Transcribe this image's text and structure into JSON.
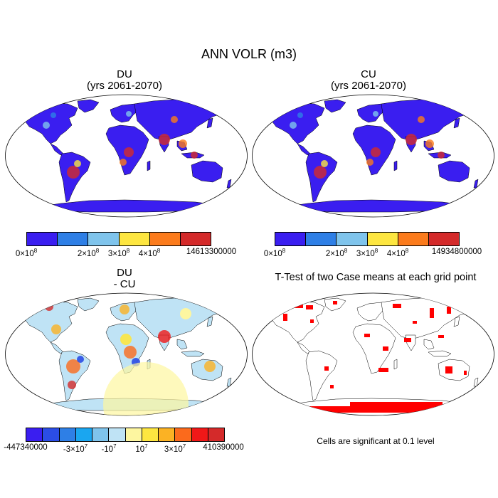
{
  "main_title": "ANN VOLR (m3)",
  "panels": {
    "du": {
      "title_line1": "DU",
      "title_line2": "(yrs 2061-2070)"
    },
    "cu": {
      "title_line1": "CU",
      "title_line2": "(yrs 2061-2070)"
    },
    "diff": {
      "title_line1": "DU",
      "title_line2": "- CU"
    },
    "ttest": {
      "title_line1": "T-Test of two Case means at each grid point",
      "note": "Cells are significant at 0.1 level",
      "significant_color": "#ff0000"
    }
  },
  "colorbars": {
    "du": {
      "colors": [
        "#3a1ef0",
        "#2e7fe6",
        "#7fc4ec",
        "#fde640",
        "#fb7b1c",
        "#d42a2a"
      ],
      "labels": {
        "min": "0×10",
        "min_exp": "8",
        "t2": "2×10",
        "t2_exp": "8",
        "t3": "3×10",
        "t3_exp": "8",
        "t4": "4×10",
        "t4_exp": "8",
        "max": "14613300000"
      }
    },
    "cu": {
      "colors": [
        "#3a1ef0",
        "#2e7fe6",
        "#7fc4ec",
        "#fde640",
        "#fb7b1c",
        "#d42a2a"
      ],
      "labels": {
        "min": "0×10",
        "min_exp": "8",
        "t2": "2×10",
        "t2_exp": "8",
        "t3": "3×10",
        "t3_exp": "8",
        "t4": "4×10",
        "t4_exp": "8",
        "max": "14934800000"
      }
    },
    "diff": {
      "colors": [
        "#3a1ef0",
        "#2b4de6",
        "#2e7fe6",
        "#1aa6f0",
        "#7fc4ec",
        "#bfe3f5",
        "#fdf6a0",
        "#fde640",
        "#fbb224",
        "#fb6a1c",
        "#f01818",
        "#d42a2a"
      ],
      "labels": {
        "min": "-447340000",
        "t_m3": "-3×10",
        "t_m3_exp": "7",
        "t_m1": "-10",
        "t_m1_exp": "7",
        "t_p1": "10",
        "t_p1_exp": "7",
        "t_p3": "3×10",
        "t_p3_exp": "7",
        "max": "410390000"
      }
    }
  }
}
